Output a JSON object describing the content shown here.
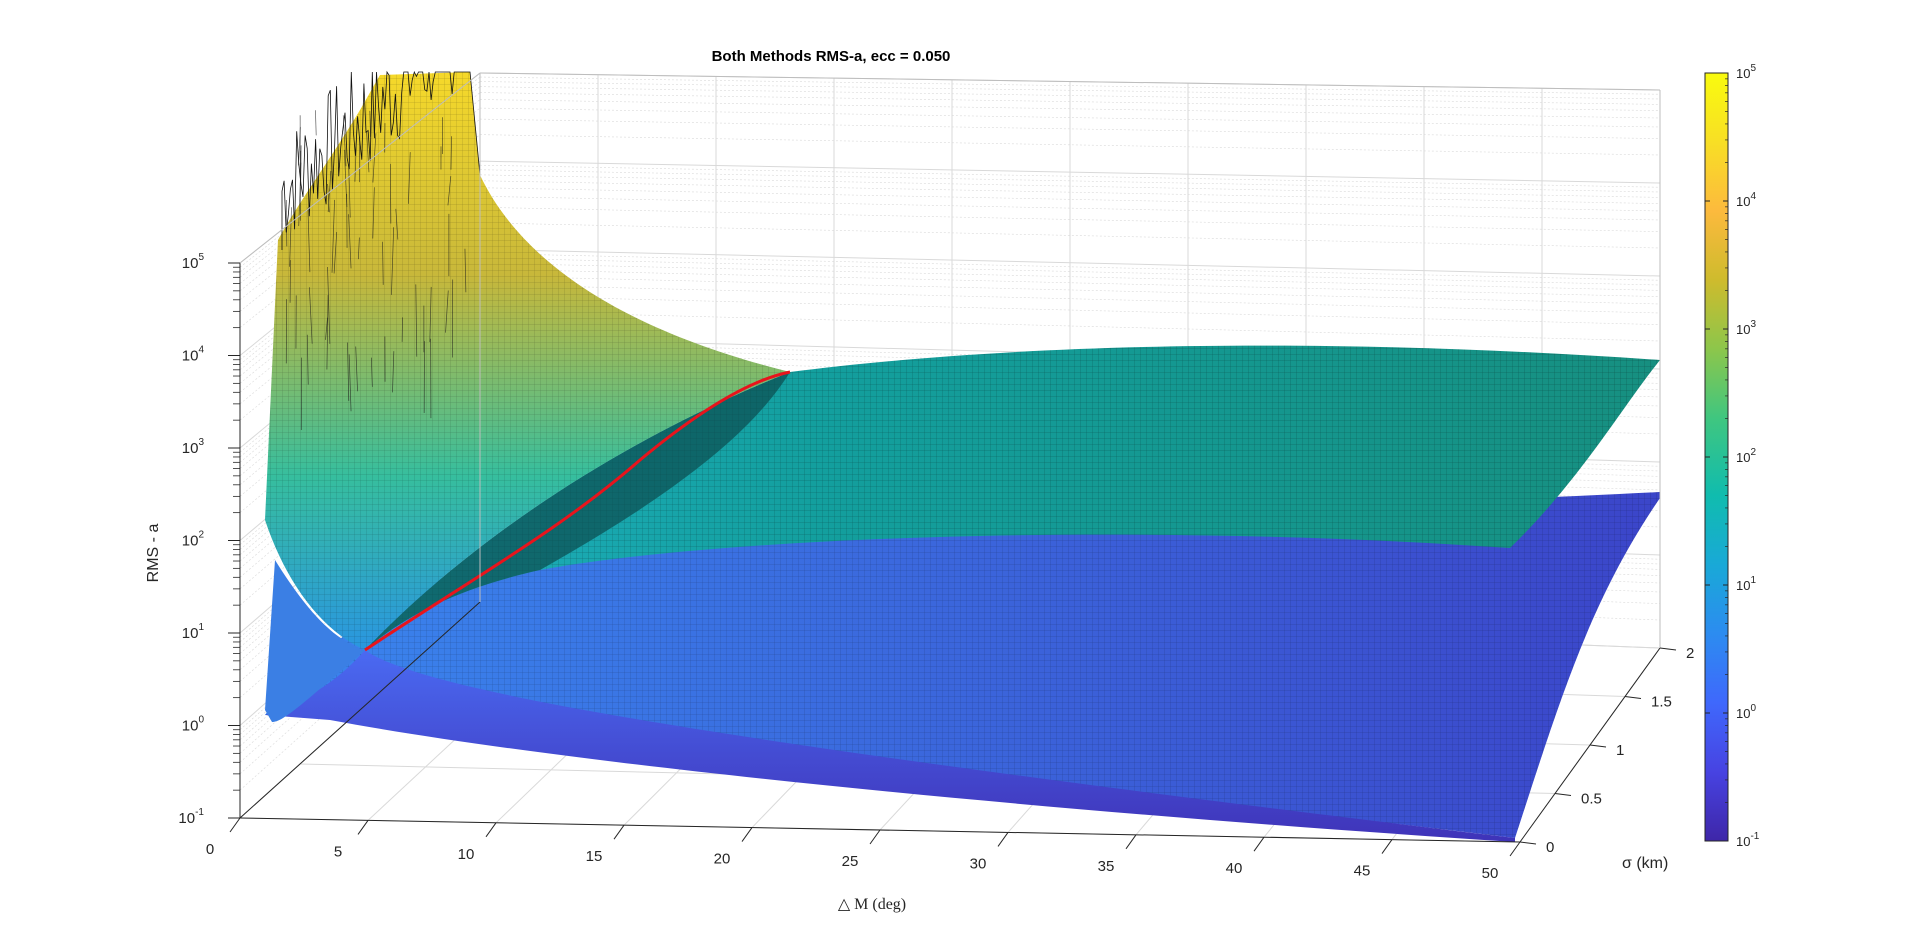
{
  "chart_data": {
    "type": "surface",
    "title": "Both Methods RMS-a, ecc = 0.050",
    "xlabel": "△ M (deg)",
    "ylabel": "σ (km)",
    "zlabel": "RMS - a",
    "xlim": [
      0,
      50
    ],
    "ylim": [
      0,
      2
    ],
    "zlim": [
      0.1,
      100000
    ],
    "z_scale": "log",
    "x_ticks": [
      "0",
      "5",
      "10",
      "15",
      "20",
      "25",
      "30",
      "35",
      "40",
      "45",
      "50"
    ],
    "y_ticks": [
      "0",
      "0.5",
      "1",
      "1.5",
      "2"
    ],
    "z_ticks": [
      {
        "base": "10",
        "exp": "-1"
      },
      {
        "base": "10",
        "exp": "0"
      },
      {
        "base": "10",
        "exp": "1"
      },
      {
        "base": "10",
        "exp": "2"
      },
      {
        "base": "10",
        "exp": "3"
      },
      {
        "base": "10",
        "exp": "4"
      },
      {
        "base": "10",
        "exp": "5"
      }
    ],
    "colorbar": {
      "range": [
        0.1,
        100000
      ],
      "scale": "log",
      "colormap": "parula",
      "ticks": [
        {
          "base": "10",
          "exp": "-1"
        },
        {
          "base": "10",
          "exp": "0"
        },
        {
          "base": "10",
          "exp": "1"
        },
        {
          "base": "10",
          "exp": "2"
        },
        {
          "base": "10",
          "exp": "3"
        },
        {
          "base": "10",
          "exp": "4"
        },
        {
          "base": "10",
          "exp": "5"
        }
      ]
    },
    "grid": true,
    "series": [
      {
        "kind": "surface",
        "description_visible": false
      },
      {
        "kind": "surface",
        "description_visible": false
      },
      {
        "kind": "line",
        "color": "#e8141c"
      }
    ],
    "colors": {
      "parula_stops": [
        "#3e26a8",
        "#4743e2",
        "#3f68fc",
        "#2c8cf0",
        "#19a9d7",
        "#10bcae",
        "#3fc680",
        "#8cc64b",
        "#cebb2d",
        "#fcba3d",
        "#f8df25",
        "#f9fb0e"
      ],
      "intersection_line": "#e8141c"
    }
  }
}
